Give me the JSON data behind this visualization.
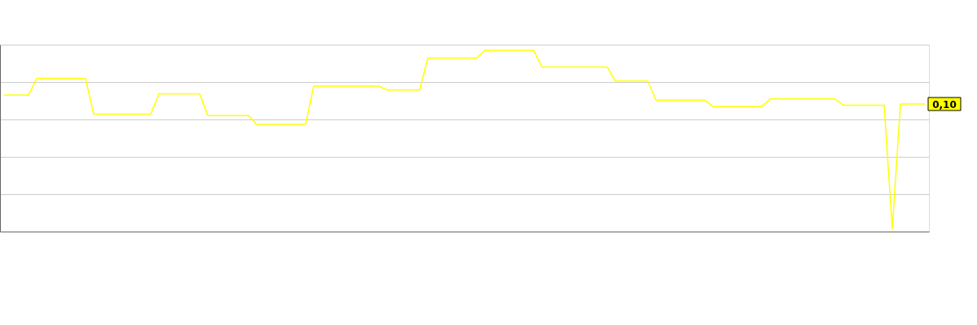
{
  "chart_data": {
    "type": "line",
    "categories": [
      null,
      null,
      null,
      null,
      null,
      null,
      null,
      null,
      null,
      null,
      null,
      null,
      null,
      null,
      null,
      null,
      null,
      null,
      null,
      null,
      null,
      null,
      null,
      null,
      null,
      null,
      null,
      null,
      null,
      null,
      null,
      null,
      null,
      null,
      null,
      null,
      null,
      null,
      null,
      null,
      null,
      null,
      null,
      null,
      null,
      null,
      null,
      null,
      null,
      null,
      null,
      null,
      null,
      null,
      null,
      null,
      null,
      null,
      null,
      null,
      null,
      null,
      null,
      null,
      null,
      null,
      null,
      null,
      null,
      null,
      null,
      null,
      null,
      null,
      null,
      null,
      null,
      null,
      null,
      null,
      null,
      null,
      null,
      null,
      null,
      null,
      null,
      null,
      null,
      null,
      null,
      null,
      null,
      null,
      null,
      null,
      null,
      null,
      null,
      null,
      null,
      null,
      null,
      null,
      null,
      null,
      null,
      null,
      null,
      null,
      null,
      null,
      null,
      null
    ],
    "series": [
      {
        "color": "#ffff00",
        "values": [
          0.107,
          0.107,
          0.107,
          0.107,
          0.12,
          0.12,
          0.12,
          0.12,
          0.12,
          0.12,
          0.12,
          0.092,
          0.092,
          0.092,
          0.092,
          0.092,
          0.092,
          0.092,
          0.092,
          0.108,
          0.108,
          0.108,
          0.108,
          0.108,
          0.108,
          0.091,
          0.091,
          0.091,
          0.091,
          0.091,
          0.091,
          0.084,
          0.084,
          0.084,
          0.084,
          0.084,
          0.084,
          0.084,
          0.114,
          0.114,
          0.114,
          0.114,
          0.114,
          0.114,
          0.114,
          0.114,
          0.114,
          0.111,
          0.111,
          0.111,
          0.111,
          0.111,
          0.136,
          0.136,
          0.136,
          0.136,
          0.136,
          0.136,
          0.136,
          0.142,
          0.142,
          0.142,
          0.142,
          0.142,
          0.142,
          0.142,
          0.129,
          0.129,
          0.129,
          0.129,
          0.129,
          0.129,
          0.129,
          0.129,
          0.129,
          0.118,
          0.118,
          0.118,
          0.118,
          0.118,
          0.103,
          0.103,
          0.103,
          0.103,
          0.103,
          0.103,
          0.103,
          0.098,
          0.098,
          0.098,
          0.098,
          0.098,
          0.098,
          0.098,
          0.104,
          0.104,
          0.104,
          0.104,
          0.104,
          0.104,
          0.104,
          0.104,
          0.104,
          0.099,
          0.099,
          0.099,
          0.099,
          0.099,
          0.099,
          0.002,
          0.1,
          0.1,
          0.1,
          0.1
        ],
        "value_labels": [
          null,
          null,
          null,
          null,
          null,
          null,
          null,
          null,
          null,
          null,
          null,
          null,
          null,
          null,
          null,
          null,
          null,
          null,
          null,
          null,
          null,
          null,
          null,
          null,
          null,
          null,
          null,
          null,
          null,
          null,
          null,
          null,
          null,
          null,
          null,
          null,
          null,
          null,
          null,
          null,
          null,
          null,
          null,
          null,
          null,
          null,
          null,
          null,
          null,
          null,
          null,
          null,
          null,
          null,
          null,
          null,
          null,
          null,
          null,
          null,
          null,
          null,
          null,
          null,
          null,
          null,
          null,
          null,
          null,
          null,
          null,
          null,
          null,
          null,
          null,
          null,
          null,
          null,
          null,
          null,
          null,
          null,
          null,
          null,
          null,
          null,
          null,
          null,
          null,
          null,
          null,
          null,
          null,
          null,
          null,
          null,
          null,
          null,
          null,
          null,
          null,
          null,
          null,
          null,
          null,
          null,
          null,
          null,
          null,
          null,
          null,
          null,
          null,
          "0,10"
        ]
      }
    ],
    "ylim": [
      0,
      0.1465
    ],
    "yticks": [
      {
        "value": 0,
        "label": null
      },
      {
        "value": 0.0293,
        "label": null
      },
      {
        "value": 0.0586,
        "label": null
      },
      {
        "value": 0.0879,
        "label": null
      },
      {
        "value": 0.1172,
        "label": null
      },
      {
        "value": 0.1465,
        "label": null
      }
    ],
    "grid": "y",
    "marker": "none",
    "line_style": "solid"
  }
}
